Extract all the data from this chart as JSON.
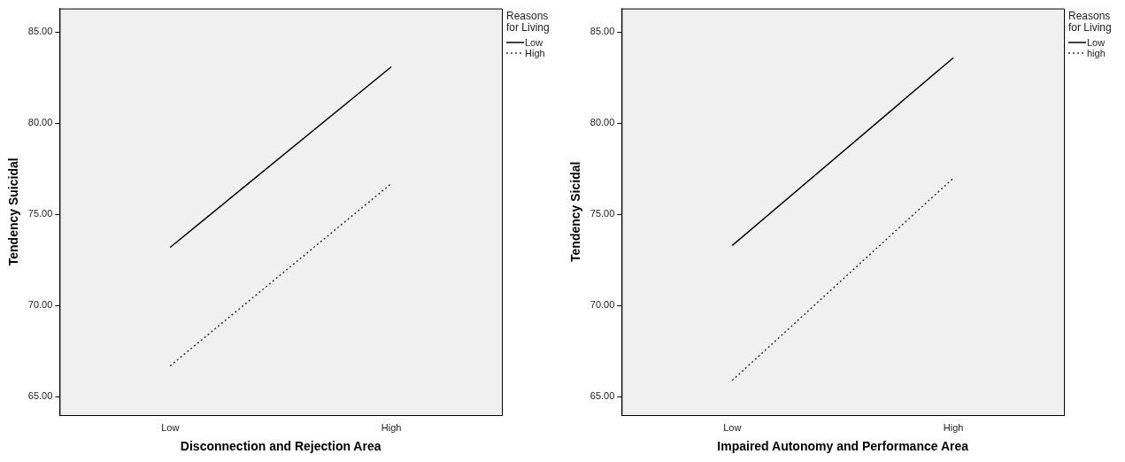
{
  "chart_data": [
    {
      "type": "line",
      "xlabel": "Disconnection and Rejection Area",
      "ylabel": "Tendency Suicidal",
      "legend_title": "Reasons for Living",
      "legend": "top right",
      "grid": false,
      "marker": "none",
      "categories": [
        "Low",
        "High"
      ],
      "series": [
        {
          "name": "Low",
          "color": "#000000",
          "values": [
            73.2,
            83.1
          ],
          "line_style": "solid"
        },
        {
          "name": "High",
          "color": "#333333",
          "values": [
            66.7,
            76.7
          ],
          "line_style": "dotted"
        }
      ],
      "ylim": [
        64.0,
        86.3
      ],
      "yticks": [
        {
          "value": 65,
          "label": "65.00"
        },
        {
          "value": 70,
          "label": "70.00"
        },
        {
          "value": 75,
          "label": "75.00"
        },
        {
          "value": 80,
          "label": "80.00"
        },
        {
          "value": 85,
          "label": "85.00"
        }
      ]
    },
    {
      "type": "line",
      "xlabel": "Impaired Autonomy and Performance Area",
      "ylabel": "Tendency Sicidal",
      "legend_title": "Reasons for Living",
      "legend": "top right",
      "grid": false,
      "marker": "none",
      "categories": [
        "Low",
        "High"
      ],
      "series": [
        {
          "name": "Low",
          "color": "#000000",
          "values": [
            73.3,
            83.6
          ],
          "line_style": "solid"
        },
        {
          "name": "high",
          "color": "#333333",
          "values": [
            65.9,
            77.0
          ],
          "line_style": "dotted"
        }
      ],
      "ylim": [
        64.0,
        86.3
      ],
      "yticks": [
        {
          "value": 65,
          "label": "65.00"
        },
        {
          "value": 70,
          "label": "70.00"
        },
        {
          "value": 75,
          "label": "75.00"
        },
        {
          "value": 80,
          "label": "80.00"
        },
        {
          "value": 85,
          "label": "85.00"
        }
      ]
    }
  ]
}
